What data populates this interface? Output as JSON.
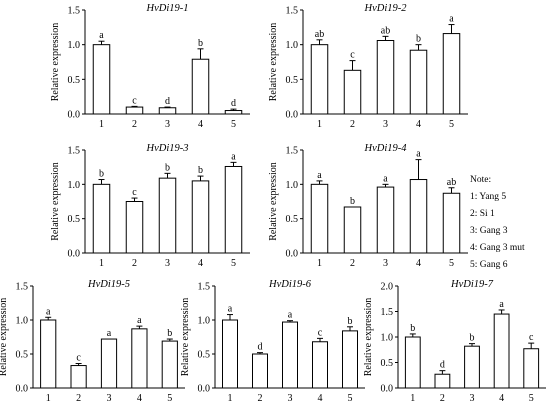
{
  "ylabel": "Relative expression",
  "note": {
    "title": "Note:",
    "items": [
      "1: Yang 5",
      "2: Si 1",
      "3: Gang 3",
      "4: Gang 3 mut",
      "5: Gang 6"
    ]
  },
  "chart_data": [
    {
      "type": "bar",
      "title": "HvDi19-1",
      "categories": [
        "1",
        "2",
        "3",
        "4",
        "5"
      ],
      "values": [
        1.0,
        0.1,
        0.09,
        0.79,
        0.05
      ],
      "errors": [
        0.05,
        0.01,
        0.01,
        0.15,
        0.02
      ],
      "letters": [
        "a",
        "c",
        "d",
        "b",
        "d"
      ],
      "ylabel": "Relative expression",
      "ylim": [
        0,
        1.5
      ],
      "yticks": [
        "0.0",
        "0.5",
        "1.0",
        "1.5"
      ]
    },
    {
      "type": "bar",
      "title": "HvDi19-2",
      "categories": [
        "1",
        "2",
        "3",
        "4",
        "5"
      ],
      "values": [
        1.0,
        0.63,
        1.06,
        0.92,
        1.16
      ],
      "errors": [
        0.07,
        0.14,
        0.06,
        0.08,
        0.13
      ],
      "letters": [
        "ab",
        "c",
        "ab",
        "b",
        "a"
      ],
      "ylabel": "Relative expression",
      "ylim": [
        0,
        1.5
      ],
      "yticks": [
        "0.0",
        "0.5",
        "1.0",
        "1.5"
      ]
    },
    {
      "type": "bar",
      "title": "HvDi19-3",
      "categories": [
        "1",
        "2",
        "3",
        "4",
        "5"
      ],
      "values": [
        1.0,
        0.75,
        1.09,
        1.05,
        1.26
      ],
      "errors": [
        0.07,
        0.05,
        0.07,
        0.07,
        0.06
      ],
      "letters": [
        "b",
        "c",
        "b",
        "b",
        "a"
      ],
      "ylabel": "Relative expression",
      "ylim": [
        0,
        1.5
      ],
      "yticks": [
        "0.0",
        "0.5",
        "1.0",
        "1.5"
      ]
    },
    {
      "type": "bar",
      "title": "HvDi19-4",
      "categories": [
        "1",
        "2",
        "3",
        "4",
        "5"
      ],
      "values": [
        1.0,
        0.67,
        0.96,
        1.07,
        0.87
      ],
      "errors": [
        0.05,
        0.0,
        0.04,
        0.29,
        0.08
      ],
      "letters": [
        "a",
        "b",
        "a",
        "a",
        "ab"
      ],
      "ylabel": "Relative expression",
      "ylim": [
        0,
        1.5
      ],
      "yticks": [
        "0.0",
        "0.5",
        "1.0",
        "1.5"
      ]
    },
    {
      "type": "bar",
      "title": "HvDi19-5",
      "categories": [
        "1",
        "2",
        "3",
        "4",
        "5"
      ],
      "values": [
        1.0,
        0.33,
        0.72,
        0.87,
        0.69
      ],
      "errors": [
        0.04,
        0.03,
        0.0,
        0.04,
        0.03
      ],
      "letters": [
        "a",
        "c",
        "a",
        "a",
        "b"
      ],
      "ylabel": "Relative expression",
      "ylim": [
        0,
        1.5
      ],
      "yticks": [
        "0.0",
        "0.5",
        "1.0",
        "1.5"
      ]
    },
    {
      "type": "bar",
      "title": "HvDi19-6",
      "categories": [
        "1",
        "2",
        "3",
        "4",
        "5"
      ],
      "values": [
        1.0,
        0.5,
        0.97,
        0.68,
        0.84
      ],
      "errors": [
        0.08,
        0.02,
        0.02,
        0.05,
        0.06
      ],
      "letters": [
        "a",
        "d",
        "a",
        "c",
        "b"
      ],
      "ylabel": "Relative expression",
      "ylim": [
        0,
        1.5
      ],
      "yticks": [
        "0.0",
        "0.5",
        "1.0",
        "1.5"
      ]
    },
    {
      "type": "bar",
      "title": "HvDi19-7",
      "categories": [
        "1",
        "2",
        "3",
        "4",
        "5"
      ],
      "values": [
        1.0,
        0.27,
        0.82,
        1.45,
        0.77
      ],
      "errors": [
        0.06,
        0.07,
        0.05,
        0.08,
        0.11
      ],
      "letters": [
        "b",
        "d",
        "b",
        "a",
        "c"
      ],
      "ylabel": "Relative expression",
      "ylim": [
        0,
        2.0
      ],
      "yticks": [
        "0.0",
        "0.5",
        "1.0",
        "1.5",
        "2.0"
      ]
    }
  ]
}
